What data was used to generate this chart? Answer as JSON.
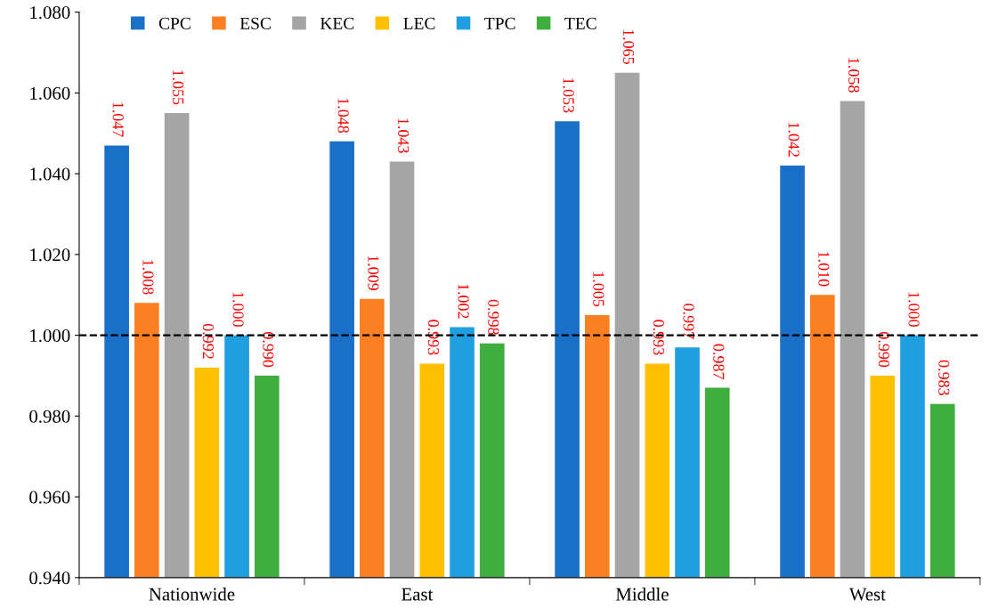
{
  "chart_data": {
    "type": "bar",
    "categories": [
      "Nationwide",
      "East",
      "Middle",
      "West"
    ],
    "series": [
      {
        "name": "CPC",
        "color": "#1a70c8",
        "values": [
          1.047,
          1.048,
          1.053,
          1.042
        ],
        "value_labels": [
          "1.047",
          "1.048",
          "1.053",
          "1.042"
        ]
      },
      {
        "name": "ESC",
        "color": "#fc7f22",
        "values": [
          1.008,
          1.009,
          1.005,
          1.01
        ],
        "value_labels": [
          "1.008",
          "1.009",
          "1.005",
          "1.010"
        ]
      },
      {
        "name": "KEC",
        "color": "#a5a5a5",
        "values": [
          1.055,
          1.043,
          1.065,
          1.058
        ],
        "value_labels": [
          "1.055",
          "1.043",
          "1.065",
          "1.058"
        ]
      },
      {
        "name": "LEC",
        "color": "#ffc000",
        "values": [
          0.992,
          0.993,
          0.993,
          0.99
        ],
        "value_labels": [
          "0.992",
          "0.993",
          "0.993",
          "0.990"
        ]
      },
      {
        "name": "TPC",
        "color": "#1f9fdf",
        "values": [
          1.0,
          1.002,
          0.997,
          1.0
        ],
        "value_labels": [
          "1.000",
          "1.002",
          "0.997",
          "1.000"
        ]
      },
      {
        "name": "TEC",
        "color": "#3fae3f",
        "values": [
          0.99,
          0.998,
          0.987,
          0.983
        ],
        "value_labels": [
          "0.990",
          "0.998",
          "0.987",
          "0.983"
        ]
      }
    ],
    "ylim": [
      0.94,
      1.08
    ],
    "yticks": [
      {
        "value": 0.94,
        "label": "0.940"
      },
      {
        "value": 0.96,
        "label": "0.960"
      },
      {
        "value": 0.98,
        "label": "0.980"
      },
      {
        "value": 1.0,
        "label": "1.000"
      },
      {
        "value": 1.02,
        "label": "1.020"
      },
      {
        "value": 1.04,
        "label": "1.040"
      },
      {
        "value": 1.06,
        "label": "1.060"
      },
      {
        "value": 1.08,
        "label": "1.080"
      }
    ],
    "ref_lines": [
      {
        "axis": "y",
        "value": 1.0,
        "color": "#000000",
        "line_style": "dashed"
      }
    ],
    "grid": false,
    "legend": "top left"
  }
}
